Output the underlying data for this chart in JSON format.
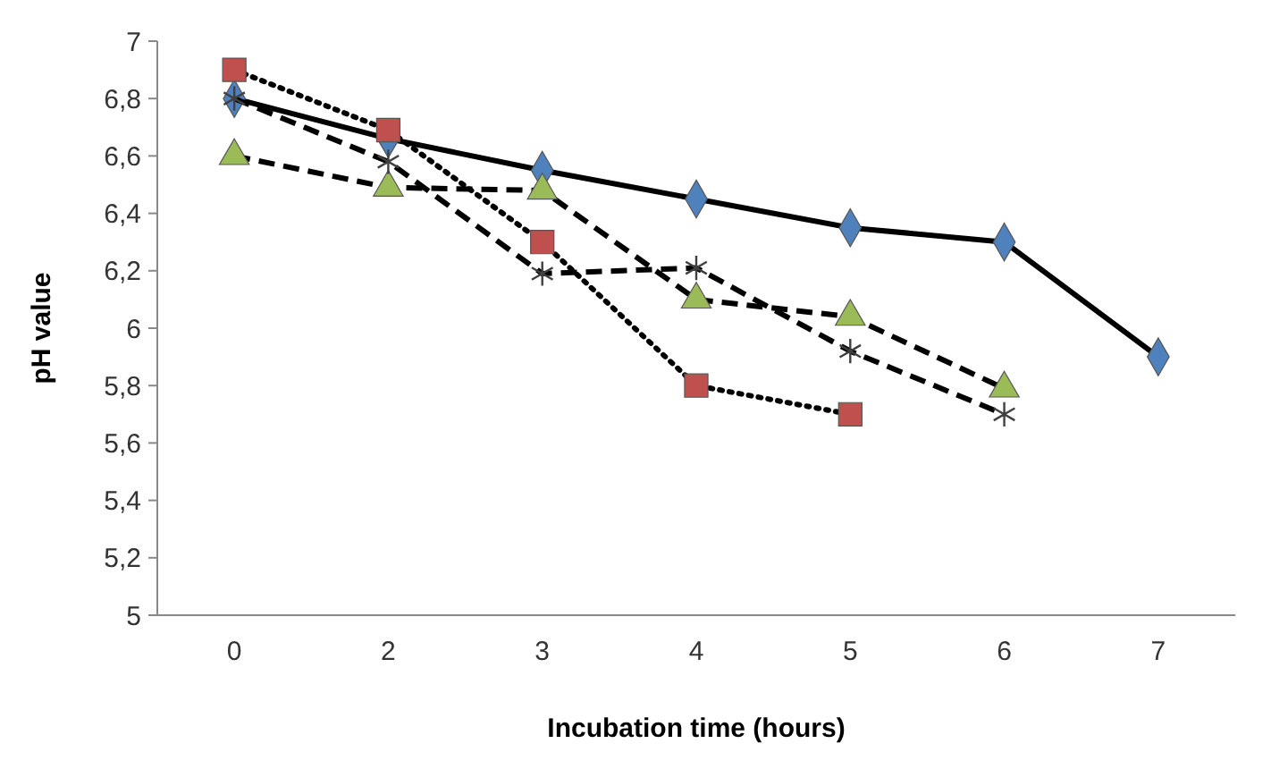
{
  "chart_data": {
    "type": "line",
    "xlabel": "Incubation time (hours)",
    "ylabel": "pH value",
    "categories": [
      "0",
      "2",
      "3",
      "4",
      "5",
      "6",
      "7"
    ],
    "ylim": [
      5,
      7
    ],
    "yticks": [
      5,
      {
        "value": 5.2,
        "label": "5,2"
      },
      {
        "value": 5.4,
        "label": "5,4"
      },
      {
        "value": 5.6,
        "label": "5,6"
      },
      {
        "value": 5.8,
        "label": "5,8"
      },
      6,
      {
        "value": 6.2,
        "label": "6,2"
      },
      {
        "value": 6.4,
        "label": "6,4"
      },
      {
        "value": 6.6,
        "label": "6,6"
      },
      {
        "value": 6.8,
        "label": "6,8"
      },
      7
    ],
    "grid": false,
    "series": [
      {
        "color": "#4f81bd",
        "marker": "diamond",
        "line_style": "solid",
        "values": [
          6.8,
          6.66,
          6.55,
          6.45,
          6.35,
          6.3,
          5.9
        ]
      },
      {
        "color": "#c0504d",
        "marker": "square",
        "line_style": "dotted",
        "values": [
          6.9,
          6.69,
          6.3,
          5.8,
          5.7,
          null,
          null
        ]
      },
      {
        "color": "#9bbb59",
        "marker": "triangle",
        "line_style": "dashed",
        "values": [
          6.6,
          6.49,
          6.48,
          6.1,
          6.04,
          5.79,
          null
        ]
      },
      {
        "color": "#404040",
        "marker": "cross",
        "line_style": "dashed",
        "values": [
          6.8,
          6.58,
          6.19,
          6.21,
          5.92,
          5.7,
          null
        ]
      }
    ]
  }
}
